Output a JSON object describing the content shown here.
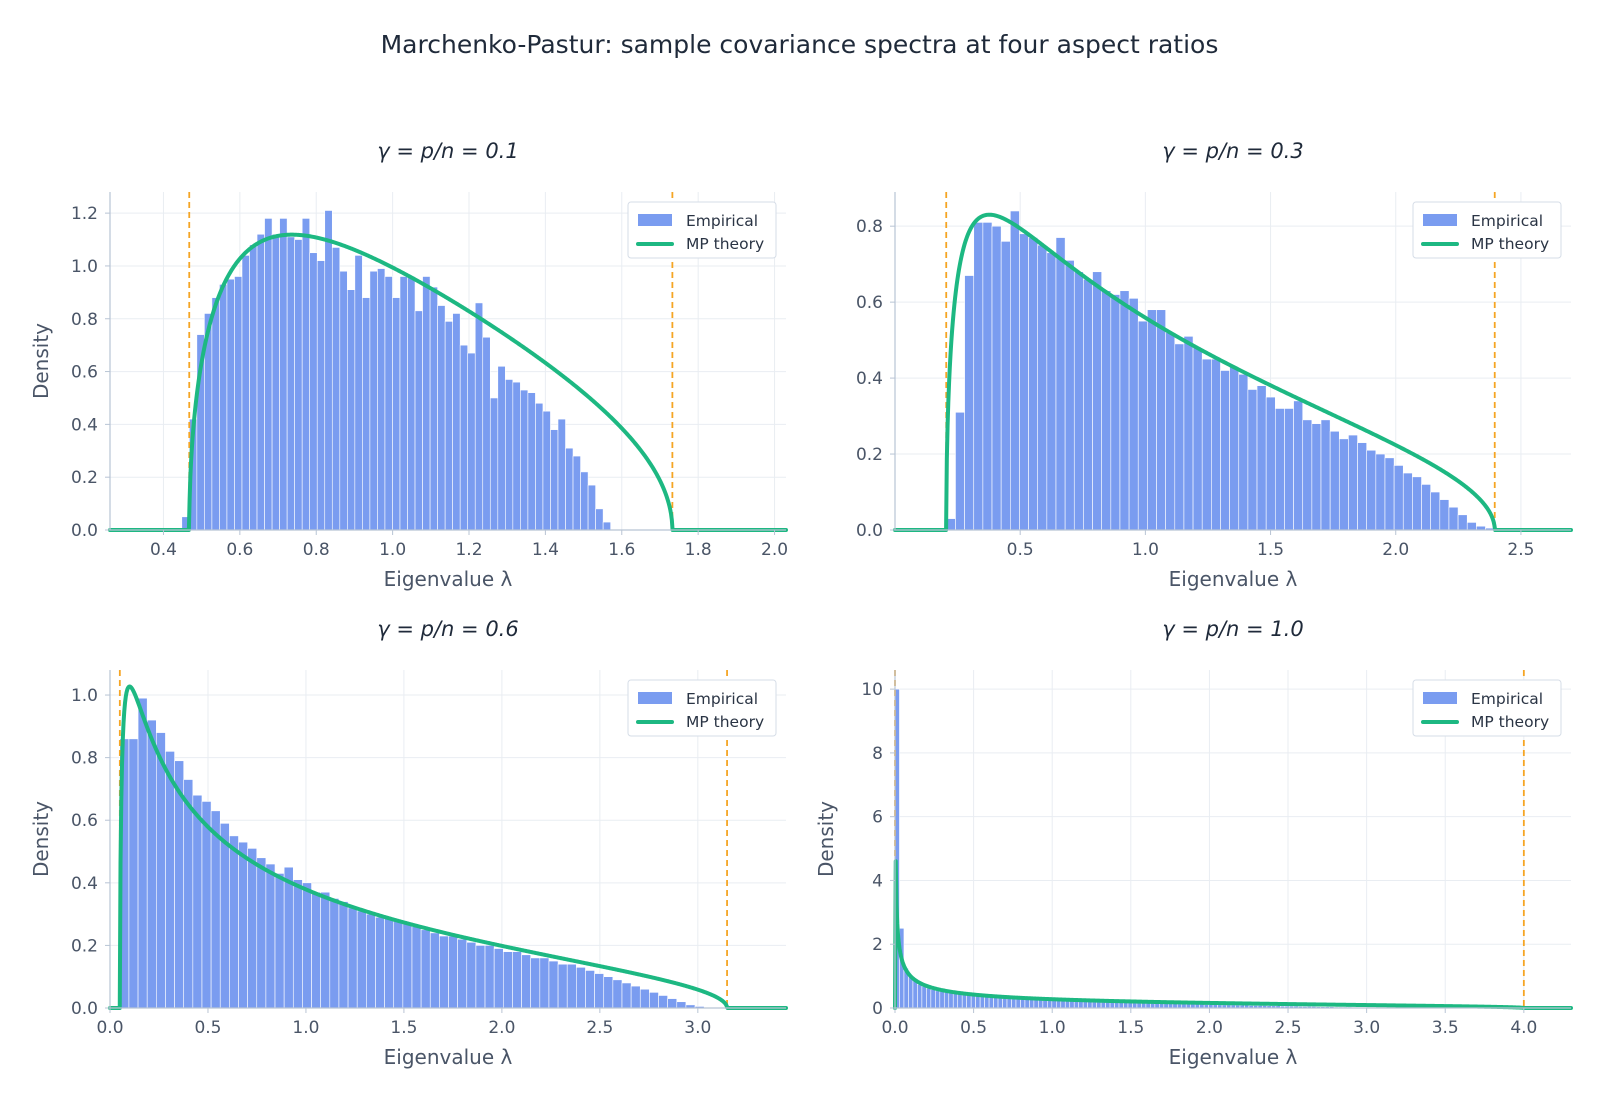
{
  "figure": {
    "suptitle": "Marchenko-Pastur: sample covariance spectra at four aspect ratios"
  },
  "style": {
    "bar_color": "#7a9cf0",
    "curve_color": "#1db882",
    "edge_color": "#f5a524",
    "grid_color": "#e9edf2",
    "axis_color": "#b8c4d4"
  },
  "legend": {
    "empirical": "Empirical",
    "theory": "MP theory",
    "placement": "top-right"
  },
  "chart_data": [
    {
      "type": "bar",
      "title": "γ = p/n = 0.1",
      "gamma": 0.1,
      "xlabel": "Eigenvalue λ",
      "ylabel": "Density",
      "xlim": [
        0.26,
        2.03
      ],
      "ylim": [
        0,
        1.28
      ],
      "xticks": [
        "0.4",
        "0.6",
        "0.8",
        "1.0",
        "1.2",
        "1.4",
        "1.6",
        "1.8",
        "2.0"
      ],
      "yticks": [
        "0.0",
        "0.2",
        "0.4",
        "0.6",
        "0.8",
        "1.0",
        "1.2"
      ],
      "bins": {
        "start": 0.448,
        "width": 0.0197
      },
      "values": [
        0.05,
        0.42,
        0.74,
        0.82,
        0.88,
        0.93,
        0.95,
        0.96,
        1.04,
        1.08,
        1.12,
        1.18,
        1.12,
        1.18,
        1.11,
        1.1,
        1.18,
        1.05,
        1.02,
        1.21,
        1.07,
        0.98,
        0.91,
        1.04,
        0.88,
        0.98,
        0.99,
        0.96,
        0.88,
        0.96,
        0.96,
        0.83,
        0.96,
        0.92,
        0.85,
        0.79,
        0.82,
        0.7,
        0.67,
        0.86,
        0.73,
        0.5,
        0.62,
        0.57,
        0.56,
        0.53,
        0.52,
        0.48,
        0.45,
        0.38,
        0.42,
        0.31,
        0.28,
        0.22,
        0.17,
        0.08,
        0.03
      ],
      "edges": [
        0.4675,
        1.7325
      ],
      "grid": true
    },
    {
      "type": "bar",
      "title": "γ = p/n = 0.3",
      "gamma": 0.3,
      "xlabel": "Eigenvalue λ",
      "ylabel": "",
      "xlim": [
        0.0,
        2.7
      ],
      "ylim": [
        0,
        0.89
      ],
      "xticks": [
        "0.5",
        "1.0",
        "1.5",
        "2.0",
        "2.5"
      ],
      "yticks": [
        "0.0",
        "0.2",
        "0.4",
        "0.6",
        "0.8"
      ],
      "bins": {
        "start": 0.205,
        "width": 0.0365
      },
      "values": [
        0.03,
        0.31,
        0.67,
        0.81,
        0.81,
        0.8,
        0.76,
        0.84,
        0.78,
        0.77,
        0.75,
        0.73,
        0.77,
        0.71,
        0.68,
        0.66,
        0.68,
        0.63,
        0.62,
        0.63,
        0.61,
        0.55,
        0.58,
        0.58,
        0.52,
        0.49,
        0.51,
        0.48,
        0.45,
        0.45,
        0.42,
        0.43,
        0.41,
        0.37,
        0.38,
        0.35,
        0.32,
        0.32,
        0.34,
        0.29,
        0.28,
        0.29,
        0.26,
        0.24,
        0.25,
        0.23,
        0.21,
        0.2,
        0.19,
        0.17,
        0.15,
        0.14,
        0.12,
        0.1,
        0.08,
        0.06,
        0.04,
        0.02,
        0.01,
        0.005
      ],
      "edges": [
        0.2046,
        2.3954
      ],
      "grid": true
    },
    {
      "type": "bar",
      "title": "γ = p/n = 0.6",
      "gamma": 0.6,
      "xlabel": "Eigenvalue λ",
      "ylabel": "Density",
      "xlim": [
        0.0,
        3.45
      ],
      "ylim": [
        0,
        1.08
      ],
      "xticks": [
        "0.0",
        "0.5",
        "1.0",
        "1.5",
        "2.0",
        "2.5",
        "3.0"
      ],
      "yticks": [
        "0.0",
        "0.2",
        "0.4",
        "0.6",
        "0.8",
        "1.0"
      ],
      "bins": {
        "start": 0.05,
        "width": 0.0466
      },
      "values": [
        0.86,
        0.86,
        0.99,
        0.92,
        0.88,
        0.82,
        0.79,
        0.73,
        0.68,
        0.66,
        0.63,
        0.59,
        0.55,
        0.53,
        0.51,
        0.48,
        0.46,
        0.43,
        0.45,
        0.41,
        0.4,
        0.37,
        0.37,
        0.35,
        0.34,
        0.32,
        0.31,
        0.3,
        0.29,
        0.29,
        0.28,
        0.27,
        0.26,
        0.25,
        0.24,
        0.23,
        0.23,
        0.22,
        0.21,
        0.2,
        0.2,
        0.19,
        0.18,
        0.18,
        0.17,
        0.16,
        0.16,
        0.15,
        0.14,
        0.14,
        0.13,
        0.12,
        0.11,
        0.1,
        0.09,
        0.08,
        0.07,
        0.06,
        0.05,
        0.04,
        0.03,
        0.02,
        0.01,
        0.005
      ],
      "edges": [
        0.0502,
        3.1492
      ],
      "grid": true
    },
    {
      "type": "bar",
      "title": "γ = p/n = 1.0",
      "gamma": 1.0,
      "xlabel": "Eigenvalue λ",
      "ylabel": "Density",
      "xlim": [
        0.0,
        4.3
      ],
      "ylim": [
        0,
        10.6
      ],
      "xticks": [
        "0.0",
        "0.5",
        "1.0",
        "1.5",
        "2.0",
        "2.5",
        "3.0",
        "3.5",
        "4.0"
      ],
      "yticks": [
        "0",
        "2",
        "4",
        "6",
        "8",
        "10"
      ],
      "bins": {
        "start": 0.0,
        "width": 0.0285
      },
      "values": [
        10.0,
        2.5,
        1.25,
        0.98,
        0.86,
        0.74,
        0.68,
        0.62,
        0.58,
        0.54,
        0.52,
        0.5,
        0.48,
        0.46,
        0.44,
        0.42,
        0.41,
        0.4,
        0.39,
        0.38,
        0.36,
        0.35,
        0.34,
        0.33,
        0.32,
        0.31,
        0.31,
        0.3,
        0.29,
        0.28,
        0.28,
        0.27,
        0.26,
        0.26,
        0.25,
        0.25,
        0.24,
        0.24,
        0.23,
        0.23,
        0.22,
        0.22,
        0.21,
        0.21,
        0.2,
        0.2,
        0.19,
        0.19,
        0.19,
        0.18,
        0.18,
        0.17,
        0.17,
        0.17,
        0.16,
        0.16,
        0.16,
        0.15,
        0.15,
        0.15,
        0.14,
        0.14,
        0.14,
        0.13,
        0.13,
        0.13,
        0.12,
        0.12,
        0.12,
        0.11,
        0.11,
        0.11,
        0.1,
        0.1,
        0.1,
        0.1,
        0.09,
        0.09,
        0.09,
        0.08,
        0.08,
        0.08,
        0.08,
        0.07,
        0.07,
        0.07,
        0.06,
        0.06,
        0.06,
        0.06,
        0.05,
        0.05,
        0.05,
        0.05,
        0.04,
        0.04,
        0.04,
        0.04,
        0.03,
        0.03,
        0.03,
        0.03,
        0.02,
        0.02,
        0.02,
        0.02,
        0.01,
        0.01,
        0.01,
        0.01
      ],
      "edges": [
        0.0,
        4.0
      ],
      "grid": true
    }
  ]
}
